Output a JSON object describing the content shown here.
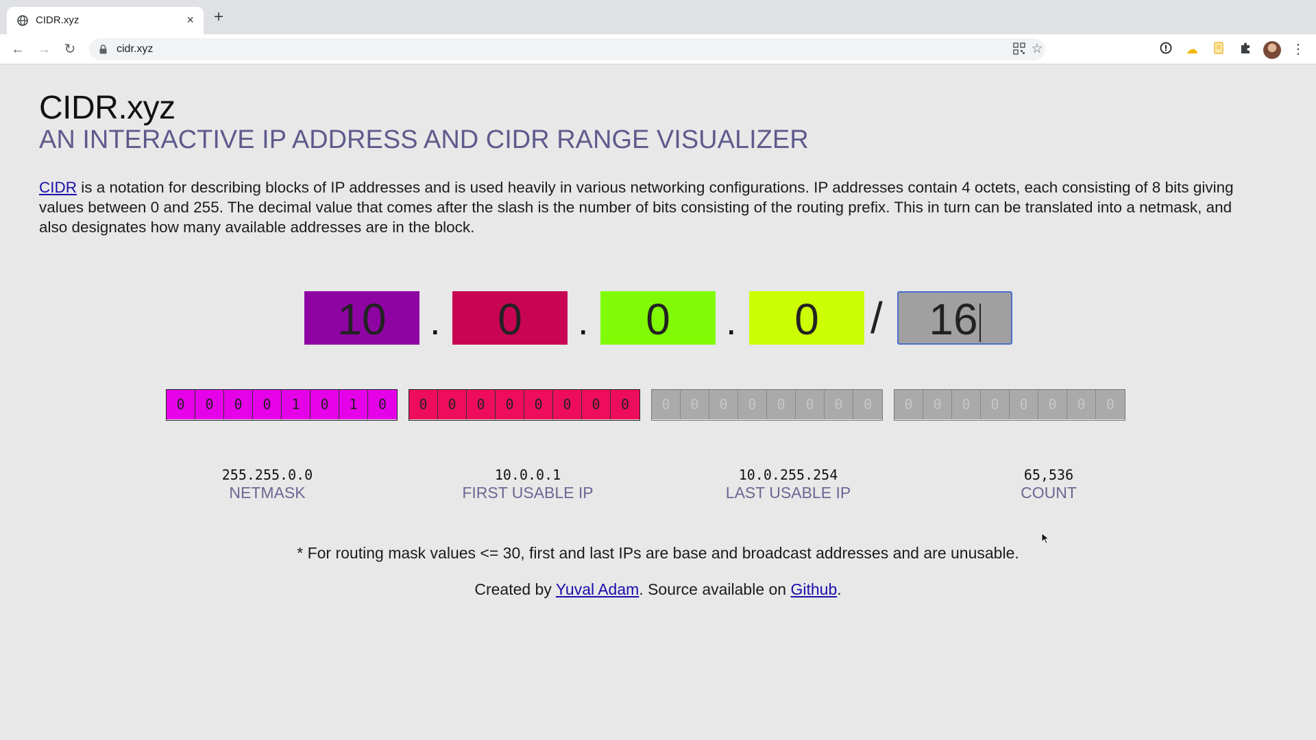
{
  "browser": {
    "tab_title": "CIDR.xyz",
    "new_tab": "+",
    "tab_close": "×",
    "url": "cidr.xyz"
  },
  "header": {
    "title": "CIDR.xyz",
    "subtitle": "AN INTERACTIVE IP ADDRESS AND CIDR RANGE VISUALIZER"
  },
  "description": {
    "link_text": "CIDR",
    "text": " is a notation for describing blocks of IP addresses and is used heavily in various networking configurations. IP addresses contain 4 octets, each consisting of 8 bits giving values between 0 and 255. The decimal value that comes after the slash is the number of bits consisting of the routing prefix. This in turn can be translated into a netmask, and also designates how many available addresses are in the block."
  },
  "address": {
    "octets": [
      {
        "value": "10",
        "color": "#8e04a3"
      },
      {
        "value": "0",
        "color": "#c80552"
      },
      {
        "value": "0",
        "color": "#81fb05"
      },
      {
        "value": "0",
        "color": "#ccff05"
      }
    ],
    "separator": ".",
    "slash": "/",
    "mask": "16",
    "mask_color": "#a0a0a0"
  },
  "bit_groups": [
    {
      "bits": [
        "0",
        "0",
        "0",
        "0",
        "1",
        "0",
        "1",
        "0"
      ],
      "active": true,
      "color": "#e501e8"
    },
    {
      "bits": [
        "0",
        "0",
        "0",
        "0",
        "0",
        "0",
        "0",
        "0"
      ],
      "active": true,
      "color": "#ee0d5c"
    },
    {
      "bits": [
        "0",
        "0",
        "0",
        "0",
        "0",
        "0",
        "0",
        "0"
      ],
      "active": false,
      "color": "#aaaaaa"
    },
    {
      "bits": [
        "0",
        "0",
        "0",
        "0",
        "0",
        "0",
        "0",
        "0"
      ],
      "active": false,
      "color": "#aaaaaa"
    }
  ],
  "results": {
    "netmask": {
      "value": "255.255.0.0",
      "label": "NETMASK"
    },
    "first_ip": {
      "value": "10.0.0.1",
      "label": "FIRST USABLE IP"
    },
    "last_ip": {
      "value": "10.0.255.254",
      "label": "LAST USABLE IP"
    },
    "count": {
      "value": "65,536",
      "label": "COUNT"
    }
  },
  "footer": {
    "note": "* For routing mask values <= 30, first and last IPs are base and broadcast addresses and are unusable.",
    "created_by": "Created by ",
    "author_link": "Yuval Adam",
    "source_text": ". Source available on ",
    "github_link": "Github",
    "end": "."
  }
}
